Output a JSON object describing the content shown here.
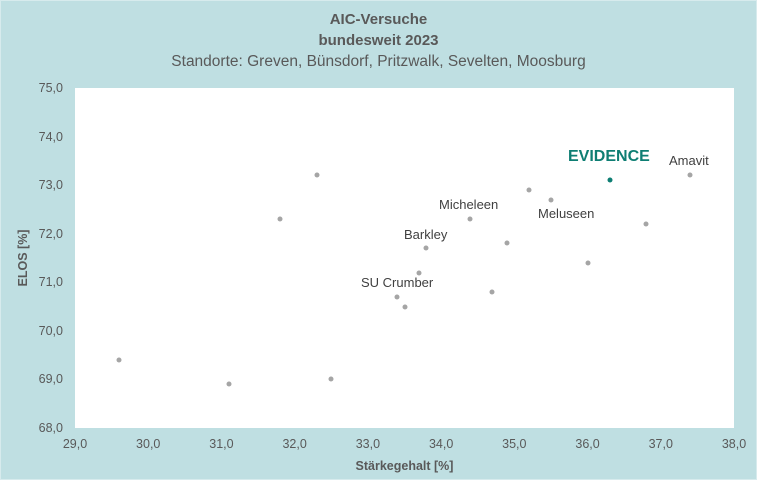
{
  "chart_data": {
    "type": "scatter",
    "title": "AIC-Versuche",
    "subtitle": "bundesweit 2023",
    "subtitle2": "Standorte: Greven, Bünsdorf, Pritzwalk, Sevelten, Moosburg",
    "xlabel": "Stärkegehalt [%]",
    "ylabel": "ELOS [%]",
    "xlim": [
      29.0,
      38.0
    ],
    "ylim": [
      68.0,
      75.0
    ],
    "xticks": [
      "29,0",
      "30,0",
      "31,0",
      "32,0",
      "33,0",
      "34,0",
      "35,0",
      "36,0",
      "37,0",
      "38,0"
    ],
    "yticks": [
      "75,0",
      "74,0",
      "73,0",
      "72,0",
      "71,0",
      "70,0",
      "69,0",
      "68,0"
    ],
    "grid": false,
    "legend": null,
    "highlight_color": "#0e7e73",
    "point_color": "#a5a5a5",
    "points": [
      {
        "x": 29.6,
        "y": 69.4,
        "label": ""
      },
      {
        "x": 31.1,
        "y": 68.9,
        "label": ""
      },
      {
        "x": 31.8,
        "y": 72.3,
        "label": ""
      },
      {
        "x": 32.3,
        "y": 73.2,
        "label": ""
      },
      {
        "x": 32.5,
        "y": 69.0,
        "label": ""
      },
      {
        "x": 33.4,
        "y": 70.7,
        "label": "SU Crumber"
      },
      {
        "x": 33.5,
        "y": 70.5,
        "label": ""
      },
      {
        "x": 33.7,
        "y": 71.2,
        "label": ""
      },
      {
        "x": 33.8,
        "y": 71.7,
        "label": "Barkley"
      },
      {
        "x": 34.4,
        "y": 72.3,
        "label": "Micheleen"
      },
      {
        "x": 34.7,
        "y": 70.8,
        "label": ""
      },
      {
        "x": 34.9,
        "y": 71.8,
        "label": ""
      },
      {
        "x": 35.2,
        "y": 72.9,
        "label": ""
      },
      {
        "x": 35.5,
        "y": 72.7,
        "label": "Meluseen"
      },
      {
        "x": 36.0,
        "y": 71.4,
        "label": ""
      },
      {
        "x": 36.3,
        "y": 73.1,
        "label": "EVIDENCE",
        "highlight": true
      },
      {
        "x": 36.8,
        "y": 72.2,
        "label": ""
      },
      {
        "x": 37.4,
        "y": 73.2,
        "label": "Amavit"
      }
    ]
  },
  "labels": {
    "su_crumber": "SU Crumber",
    "barkley": "Barkley",
    "micheleen": "Micheleen",
    "meluseen": "Meluseen",
    "evidence": "EVIDENCE",
    "amavit": "Amavit"
  }
}
